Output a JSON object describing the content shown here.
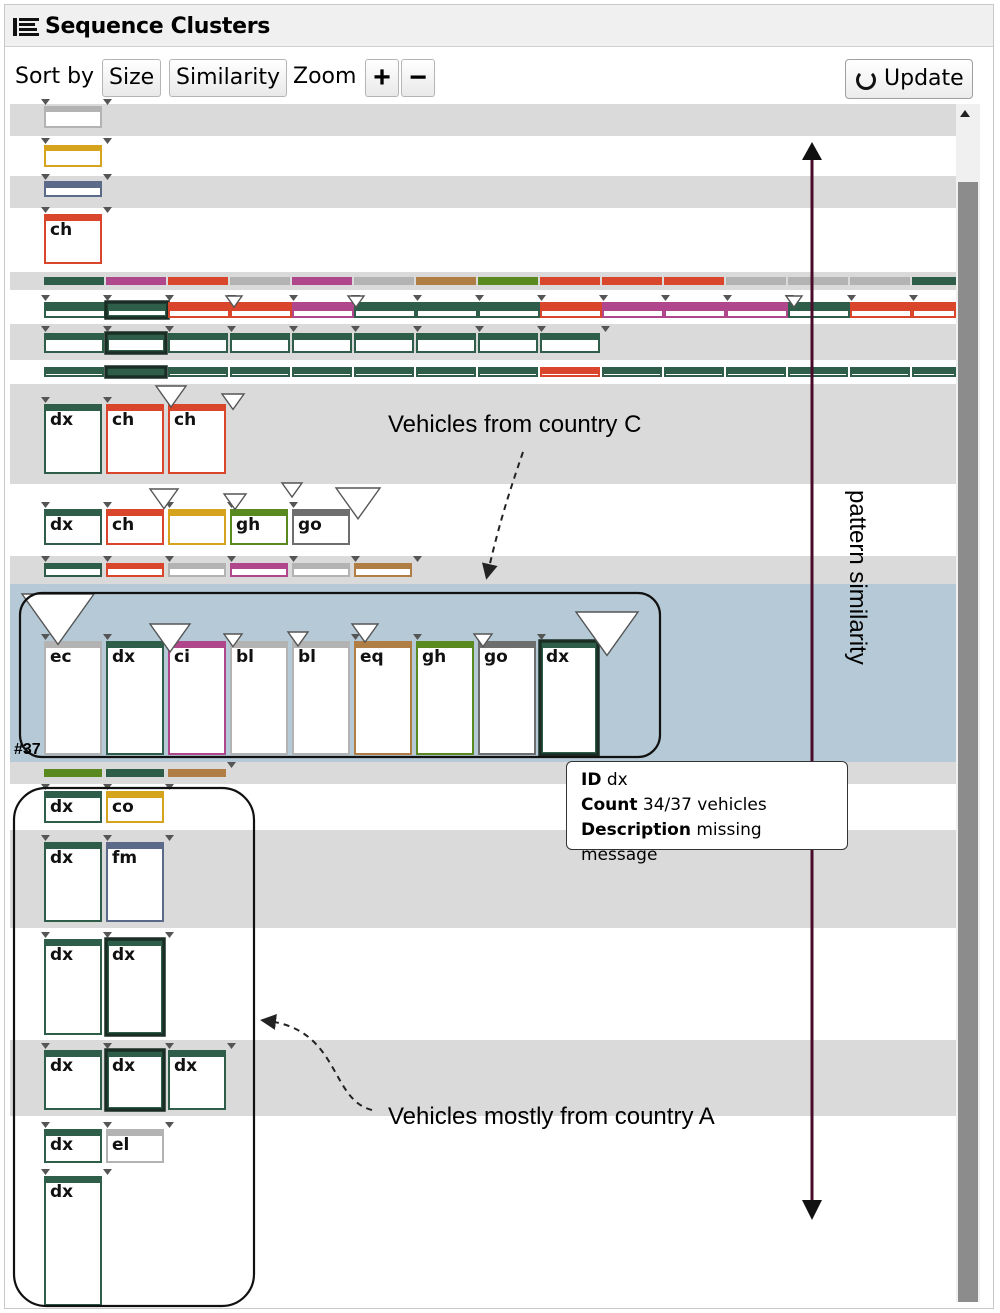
{
  "panel": {
    "title": "Sequence Clusters",
    "title_icon": "list-icon"
  },
  "toolbar": {
    "sort_by_label": "Sort by",
    "size_button": "Size",
    "similarity_button": "Similarity",
    "zoom_label": "Zoom",
    "zoom_in": "+",
    "zoom_out": "−",
    "update_button": "Update",
    "update_icon": "refresh-icon"
  },
  "colors": {
    "dx": "#2e5e4a",
    "ch": "#d9462b",
    "co": "#d6a41c",
    "gh": "#5a8a1f",
    "go": "#6e6e6e",
    "bl": "#b3b3b3",
    "ci": "#b0468c",
    "ec": "#b3b3b3",
    "eq": "#b07d45",
    "fm": "#5c6a8a",
    "el": "#b3b3b3",
    "row_gray": "#dadada",
    "row_selected": "#b5cad6"
  },
  "sequences": [
    {
      "events": [
        {
          "id": "bl",
          "label": ""
        }
      ]
    },
    {
      "events": [
        {
          "id": "co",
          "label": ""
        }
      ]
    },
    {
      "events": [
        {
          "id": "fm",
          "label": ""
        }
      ]
    },
    {
      "events": [
        {
          "id": "ch",
          "label": "ch"
        }
      ]
    },
    {
      "events": [
        {
          "id": "dx"
        },
        {
          "id": "ci"
        },
        {
          "id": "ch"
        },
        {
          "id": "bl"
        },
        {
          "id": "ci"
        },
        {
          "id": "bl"
        },
        {
          "id": "eq"
        },
        {
          "id": "gh"
        },
        {
          "id": "ch"
        },
        {
          "id": "ch"
        },
        {
          "id": "ch"
        },
        {
          "id": "bl"
        },
        {
          "id": "bl"
        },
        {
          "id": "bl"
        },
        {
          "id": "dx"
        }
      ]
    },
    {
      "events": [
        {
          "id": "dx"
        },
        {
          "id": "dx"
        },
        {
          "id": "ch"
        },
        {
          "id": "ch"
        },
        {
          "id": "ci"
        },
        {
          "id": "dx"
        },
        {
          "id": "dx"
        },
        {
          "id": "dx"
        },
        {
          "id": "ch"
        },
        {
          "id": "ci"
        },
        {
          "id": "ci"
        },
        {
          "id": "ci"
        },
        {
          "id": "dx"
        },
        {
          "id": "ch"
        },
        {
          "id": "ch"
        }
      ]
    },
    {
      "events": [
        {
          "id": "dx"
        },
        {
          "id": "dx"
        },
        {
          "id": "dx"
        },
        {
          "id": "dx"
        },
        {
          "id": "dx"
        },
        {
          "id": "dx"
        },
        {
          "id": "dx"
        },
        {
          "id": "dx"
        },
        {
          "id": "dx"
        }
      ]
    },
    {
      "events": [
        {
          "id": "dx"
        },
        {
          "id": "dx"
        },
        {
          "id": "dx"
        },
        {
          "id": "dx"
        },
        {
          "id": "dx"
        },
        {
          "id": "dx"
        },
        {
          "id": "dx"
        },
        {
          "id": "dx"
        },
        {
          "id": "ch"
        },
        {
          "id": "dx"
        },
        {
          "id": "dx"
        },
        {
          "id": "dx"
        },
        {
          "id": "dx"
        },
        {
          "id": "dx"
        },
        {
          "id": "dx"
        }
      ]
    },
    {
      "events": [
        {
          "id": "dx",
          "label": "dx"
        },
        {
          "id": "ch",
          "label": "ch"
        },
        {
          "id": "ch",
          "label": "ch"
        }
      ]
    },
    {
      "events": [
        {
          "id": "dx",
          "label": "dx"
        },
        {
          "id": "ch",
          "label": "ch"
        },
        {
          "id": "co",
          "label": ""
        },
        {
          "id": "gh",
          "label": "gh"
        },
        {
          "id": "go",
          "label": "go"
        }
      ]
    },
    {
      "events": [
        {
          "id": "dx"
        },
        {
          "id": "ch"
        },
        {
          "id": "bl"
        },
        {
          "id": "ci"
        },
        {
          "id": "bl"
        },
        {
          "id": "eq"
        }
      ]
    },
    {
      "row_number": "#37",
      "selected": true,
      "events": [
        {
          "id": "ec",
          "label": "ec"
        },
        {
          "id": "dx",
          "label": "dx"
        },
        {
          "id": "ci",
          "label": "ci"
        },
        {
          "id": "bl",
          "label": "bl"
        },
        {
          "id": "bl",
          "label": "bl"
        },
        {
          "id": "eq",
          "label": "eq"
        },
        {
          "id": "gh",
          "label": "gh"
        },
        {
          "id": "go",
          "label": "go"
        },
        {
          "id": "dx",
          "label": "dx"
        }
      ]
    },
    {
      "events": [
        {
          "id": "gh"
        },
        {
          "id": "dx"
        },
        {
          "id": "eq"
        }
      ]
    },
    {
      "events": [
        {
          "id": "dx",
          "label": "dx"
        },
        {
          "id": "co",
          "label": "co"
        }
      ]
    },
    {
      "events": [
        {
          "id": "dx",
          "label": "dx"
        },
        {
          "id": "fm",
          "label": "fm"
        }
      ]
    },
    {
      "events": [
        {
          "id": "dx",
          "label": "dx"
        },
        {
          "id": "dx",
          "label": "dx"
        }
      ]
    },
    {
      "events": [
        {
          "id": "dx",
          "label": "dx"
        },
        {
          "id": "dx",
          "label": "dx"
        },
        {
          "id": "dx",
          "label": "dx"
        }
      ]
    },
    {
      "events": [
        {
          "id": "dx",
          "label": "dx"
        },
        {
          "id": "el",
          "label": "el"
        }
      ]
    },
    {
      "events": [
        {
          "id": "dx",
          "label": "dx"
        }
      ]
    }
  ],
  "tooltip": {
    "id_label": "ID",
    "id_value": "dx",
    "count_label": "Count",
    "count_value": "34/37 vehicles",
    "description_label": "Description",
    "description_value": "missing message"
  },
  "annotations": {
    "country_c": "Vehicles from country C",
    "country_a": "Vehicles mostly from country A",
    "axis": "pattern similarity"
  }
}
